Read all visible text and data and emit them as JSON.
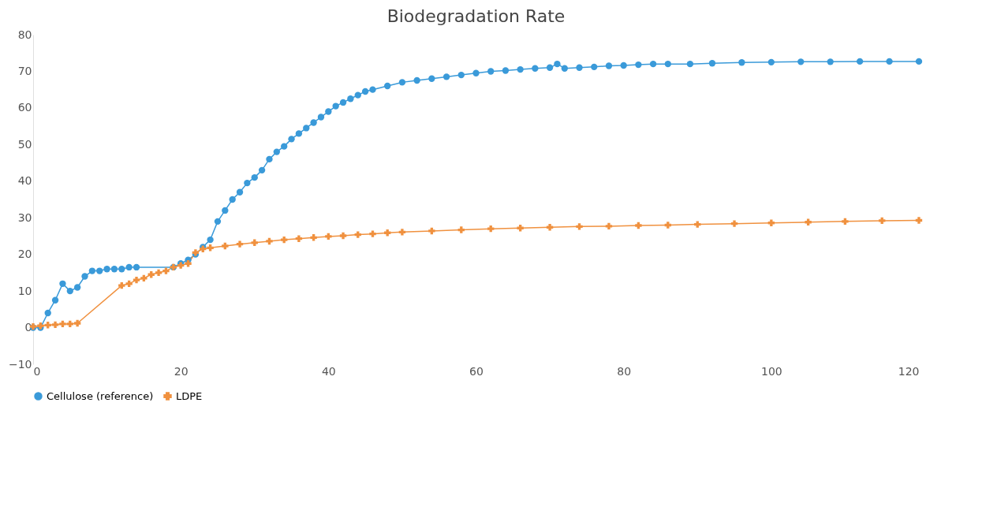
{
  "chart_data": {
    "type": "line",
    "title": "Biodegradation Rate",
    "xlim": [
      0,
      120
    ],
    "xticks": [
      0,
      20,
      40,
      60,
      80,
      100,
      120
    ],
    "ylim": [
      -10,
      80
    ],
    "yticks": [
      -10,
      0,
      10,
      20,
      30,
      40,
      50,
      60,
      70,
      80
    ],
    "grid": false,
    "legend": "bottom",
    "series": [
      {
        "name": "Cellulose (reference)",
        "color": "#3a9ad9",
        "marker": "circle",
        "x": [
          0,
          1,
          2,
          3,
          4,
          5,
          6,
          7,
          8,
          9,
          10,
          11,
          12,
          13,
          14,
          19,
          20,
          21,
          22,
          23,
          24,
          25,
          26,
          27,
          28,
          29,
          30,
          31,
          32,
          33,
          34,
          35,
          36,
          37,
          38,
          39,
          40,
          41,
          42,
          43,
          44,
          45,
          46,
          48,
          50,
          52,
          54,
          56,
          58,
          60,
          62,
          64,
          66,
          68,
          70,
          71,
          72,
          74,
          76,
          78,
          80,
          82,
          84,
          86,
          89,
          92,
          96,
          100,
          104,
          108,
          112,
          116,
          120
        ],
        "values": [
          0,
          0,
          4,
          7.5,
          12,
          10,
          11,
          14,
          15.5,
          15.5,
          16,
          16,
          16,
          16.5,
          16.5,
          16.5,
          17.5,
          18.5,
          20,
          22,
          24,
          29,
          32,
          35,
          37,
          39.5,
          41,
          43,
          46,
          48,
          49.5,
          51.5,
          53,
          54.5,
          56,
          57.5,
          59,
          60.5,
          61.5,
          62.5,
          63.5,
          64.5,
          65,
          66,
          67,
          67.5,
          68,
          68.5,
          69,
          69.5,
          70,
          70.2,
          70.5,
          70.8,
          71,
          72,
          70.8,
          71,
          71.2,
          71.5,
          71.6,
          71.8,
          72,
          72,
          72,
          72.2,
          72.4,
          72.5,
          72.6,
          72.6,
          72.7,
          72.7,
          72.7
        ]
      },
      {
        "name": "LDPE",
        "color": "#f0913f",
        "marker": "cross",
        "x": [
          0,
          1,
          2,
          3,
          4,
          5,
          6,
          12,
          13,
          14,
          15,
          16,
          17,
          18,
          19,
          20,
          21,
          22,
          23,
          24,
          26,
          28,
          30,
          32,
          34,
          36,
          38,
          40,
          42,
          44,
          46,
          48,
          50,
          54,
          58,
          62,
          66,
          70,
          74,
          78,
          82,
          86,
          90,
          95,
          100,
          105,
          110,
          115,
          120
        ],
        "values": [
          0.3,
          0.5,
          0.7,
          0.8,
          1,
          1,
          1.2,
          11.5,
          12,
          13,
          13.5,
          14.5,
          15,
          15.5,
          16.5,
          17,
          17.5,
          20.5,
          21.5,
          21.8,
          22.3,
          22.8,
          23.2,
          23.6,
          24,
          24.3,
          24.6,
          24.9,
          25.1,
          25.4,
          25.6,
          25.9,
          26.1,
          26.4,
          26.7,
          27,
          27.2,
          27.4,
          27.6,
          27.7,
          27.9,
          28,
          28.2,
          28.4,
          28.6,
          28.8,
          29,
          29.2,
          29.3
        ]
      }
    ]
  }
}
